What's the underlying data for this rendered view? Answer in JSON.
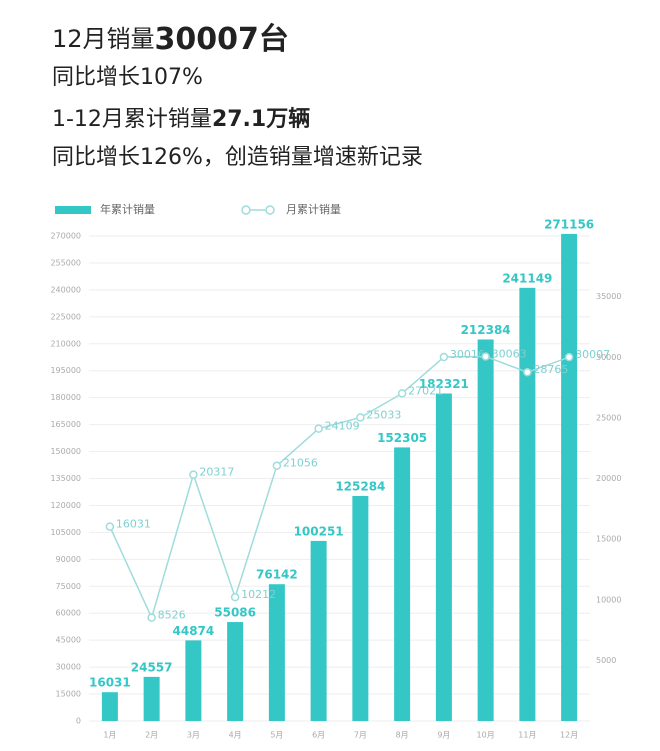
{
  "header": {
    "line1_text": "12月销量",
    "line1_bold": "30007台",
    "line2": "同比增长107%",
    "line3_text": "1-12月累计销量",
    "line3_bold": "27.1万辆",
    "line4": "同比增长126%，创造销量增速新记录"
  },
  "chart_data": {
    "type": "combo",
    "categories": [
      "1月",
      "2月",
      "3月",
      "4月",
      "5月",
      "6月",
      "7月",
      "8月",
      "9月",
      "10月",
      "11月",
      "12月"
    ],
    "series": [
      {
        "name": "年累计销量",
        "type": "bar",
        "color": "#35c6c6",
        "values": [
          16031,
          24557,
          44874,
          55086,
          76142,
          100251,
          125284,
          152305,
          182321,
          212384,
          241149,
          271156
        ]
      },
      {
        "name": "月累计销量",
        "type": "line",
        "axis": "y2",
        "color": "#9fdcdc",
        "values": [
          16031,
          8526,
          20317,
          10212,
          21056,
          24109,
          25033,
          27021,
          30016,
          30063,
          28765,
          30007
        ]
      }
    ],
    "ylim": [
      0,
      270000
    ],
    "yticks": [
      0,
      15000,
      30000,
      45000,
      60000,
      75000,
      90000,
      105000,
      120000,
      135000,
      150000,
      165000,
      180000,
      195000,
      210000,
      225000,
      240000,
      255000,
      270000
    ],
    "y2lim": [
      0,
      40000
    ],
    "y2ticks": [
      5000,
      10000,
      15000,
      20000,
      25000,
      30000,
      35000
    ],
    "grid": true,
    "legend": "top-left"
  }
}
